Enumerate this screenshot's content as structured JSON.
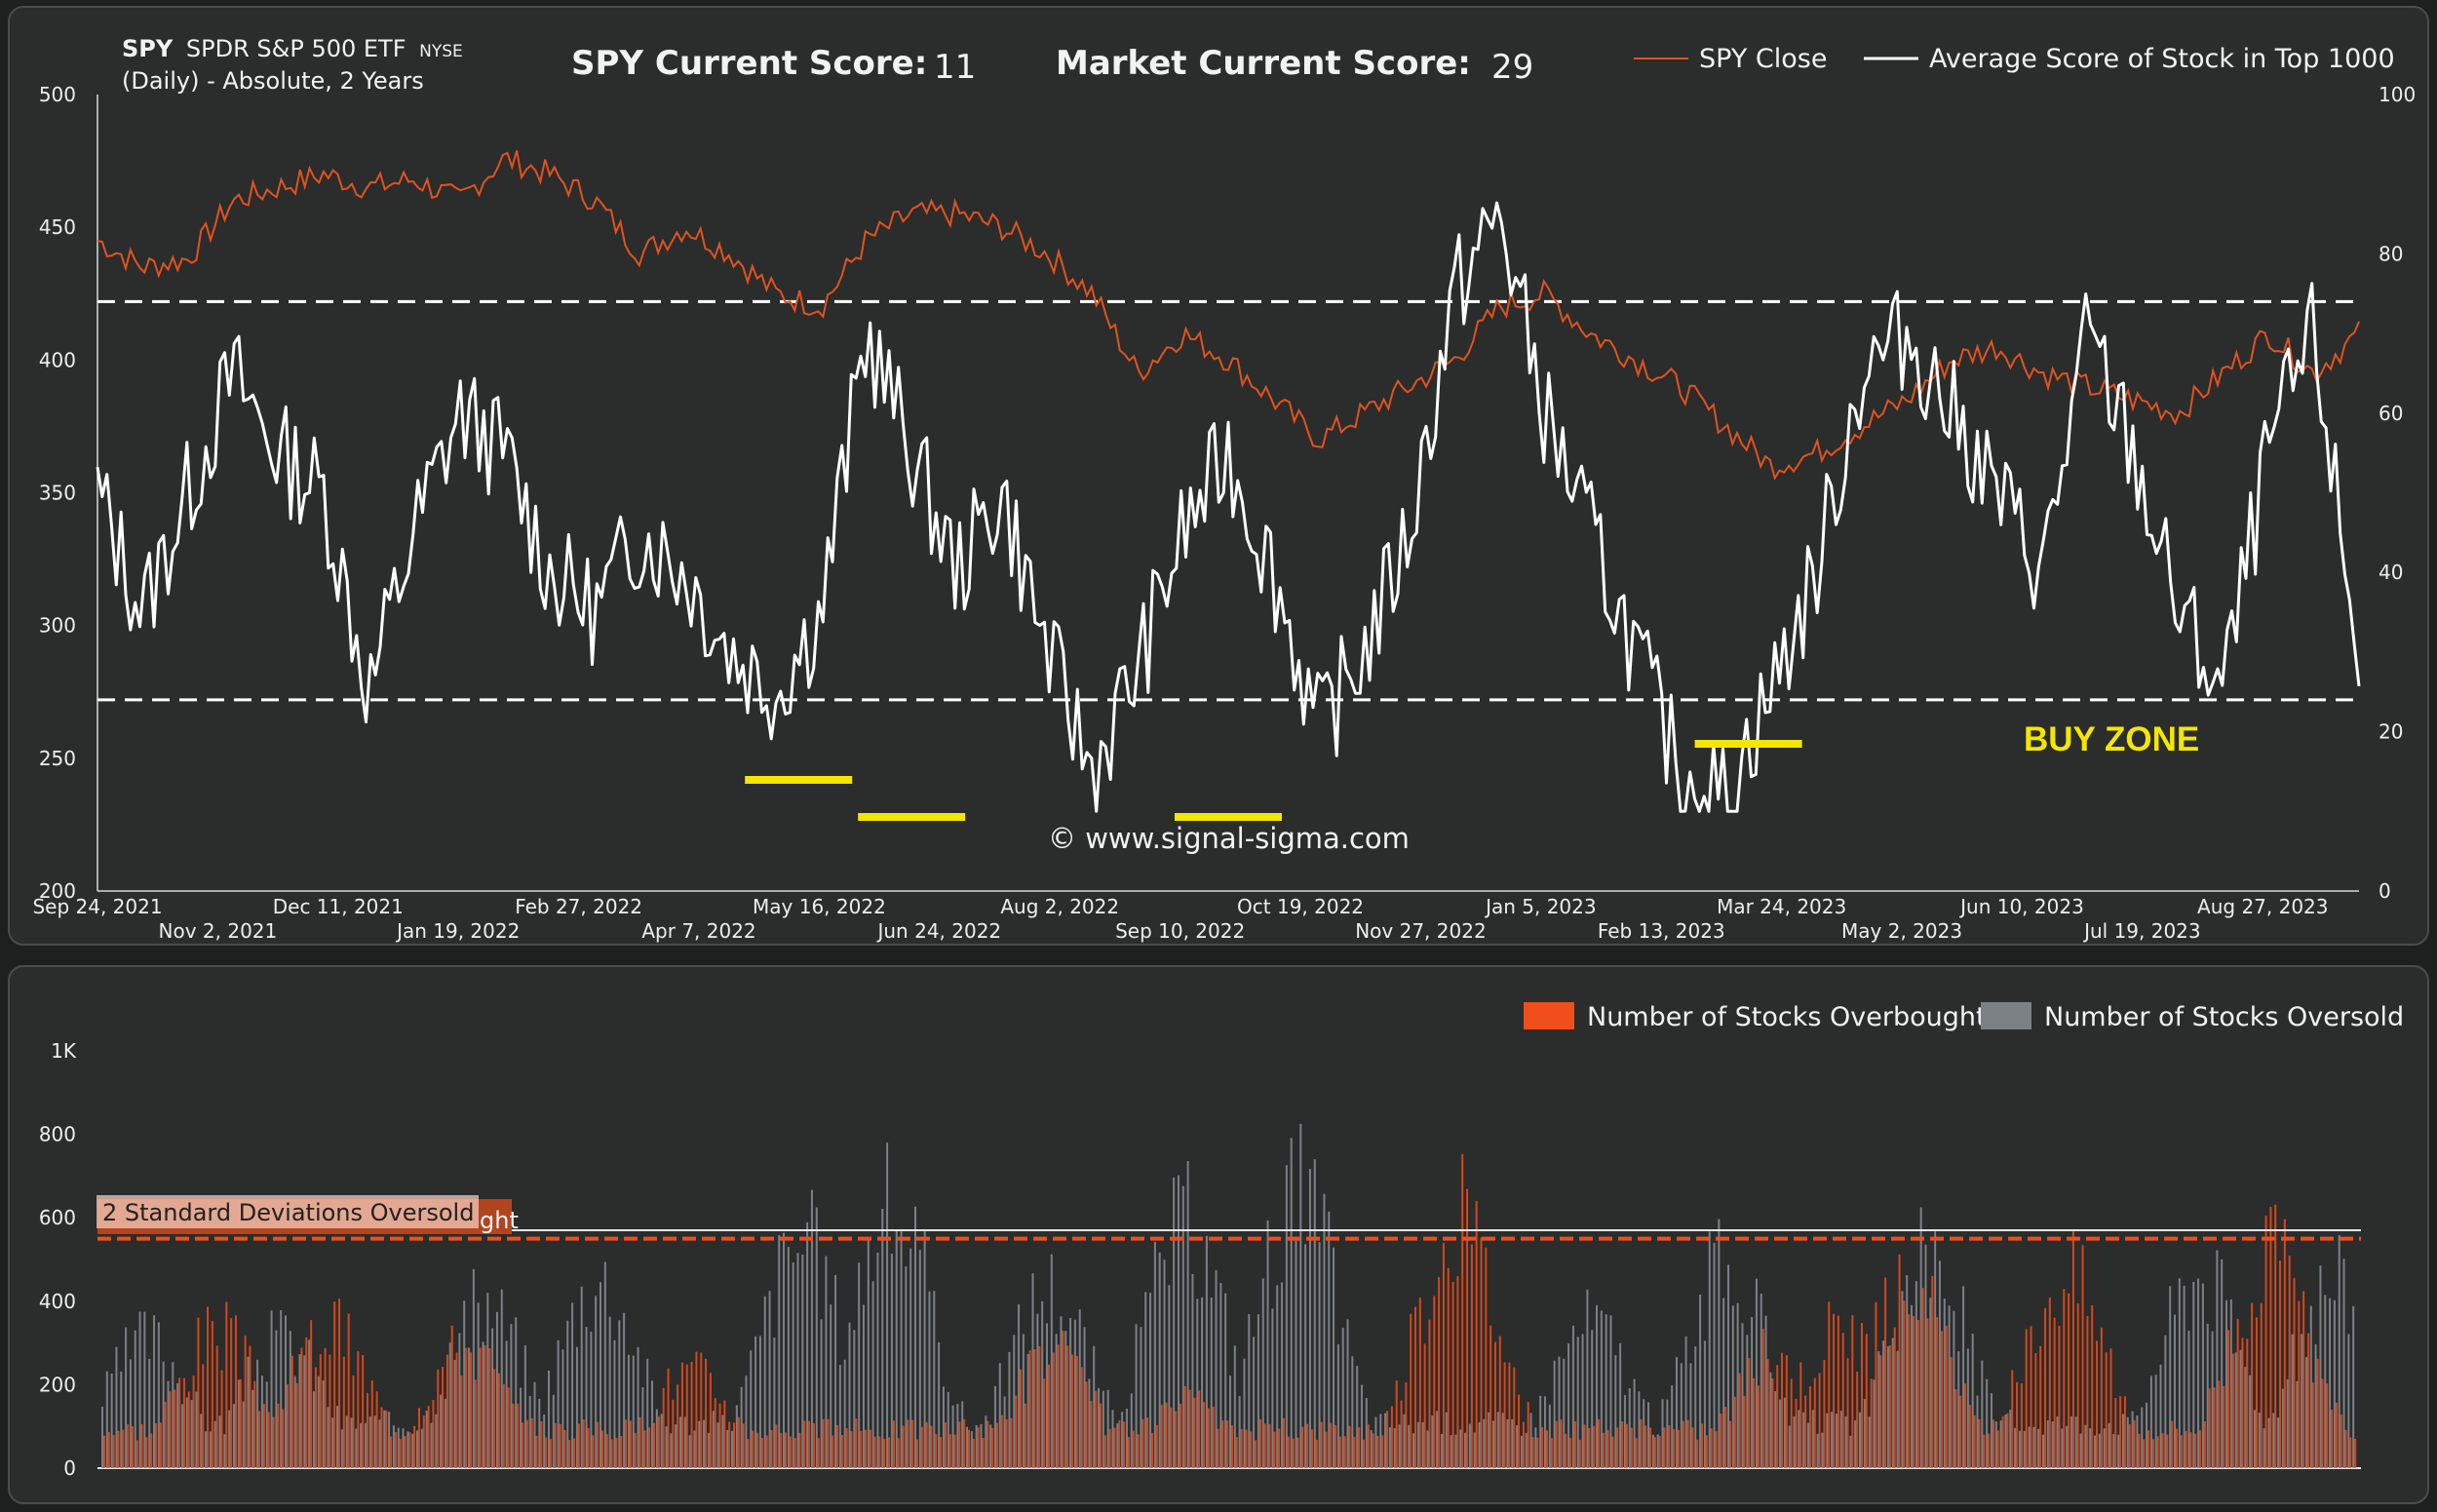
{
  "header": {
    "ticker": "SPY",
    "name": "SPDR S&P 500 ETF",
    "exchange": "NYSE",
    "subtitle": "(Daily) - Absolute, 2 Years",
    "spy_score_label": "SPY Current Score:",
    "spy_score_value": "11",
    "market_score_label": "Market Current Score:",
    "market_score_value": "29"
  },
  "legend_top": {
    "spy_close": "SPY Close",
    "avg_score": "Average Score of Stock in Top 1000"
  },
  "annotations": {
    "buy_zone": "BUY ZONE",
    "watermark": "© www.signal-sigma.com"
  },
  "legend_bottom": {
    "overbought": "Number of Stocks Overbought",
    "oversold": "Number of Stocks Oversold"
  },
  "bands": {
    "oversold_label": "2 Standard Deviations Oversold",
    "overbought_label_fragment": "ght"
  },
  "colors": {
    "spy_line": "#e0531f",
    "score_line": "#ffffff",
    "buy_mark": "#f5e600",
    "overbought": "#f04e1b",
    "oversold": "#7c8186",
    "background": "#2b2c2c"
  },
  "chart_data": [
    {
      "type": "line",
      "x_ticks_row1": [
        "Sep 24, 2021",
        "Dec 11, 2021",
        "Feb 27, 2022",
        "May 16, 2022",
        "Aug 2, 2022",
        "Oct 19, 2022",
        "Jan 5, 2023",
        "Mar 24, 2023",
        "Jun 10, 2023",
        "Aug 27, 2023"
      ],
      "x_ticks_row2": [
        "Nov 2, 2021",
        "Jan 19, 2022",
        "Apr 7, 2022",
        "Jun 24, 2022",
        "Sep 10, 2022",
        "Nov 27, 2022",
        "Feb 13, 2023",
        "May 2, 2023",
        "Jul 19, 2023"
      ],
      "y_left_ticks": [
        "200",
        "250",
        "300",
        "350",
        "400",
        "450",
        "500"
      ],
      "y_left_range": [
        200,
        500
      ],
      "y_right_ticks": [
        "0",
        "20",
        "40",
        "60",
        "80",
        "100"
      ],
      "y_right_range": [
        0,
        100
      ],
      "thresholds_right_axis": [
        74,
        24
      ],
      "series": [
        {
          "name": "SPY Close",
          "axis": "left",
          "points": [
            [
              0,
              445
            ],
            [
              0.02,
              435
            ],
            [
              0.04,
              438
            ],
            [
              0.06,
              460
            ],
            [
              0.08,
              465
            ],
            [
              0.1,
              470
            ],
            [
              0.12,
              465
            ],
            [
              0.14,
              468
            ],
            [
              0.16,
              460
            ],
            [
              0.18,
              476
            ],
            [
              0.2,
              470
            ],
            [
              0.22,
              460
            ],
            [
              0.24,
              440
            ],
            [
              0.26,
              450
            ],
            [
              0.28,
              440
            ],
            [
              0.3,
              425
            ],
            [
              0.32,
              420
            ],
            [
              0.34,
              445
            ],
            [
              0.36,
              455
            ],
            [
              0.38,
              455
            ],
            [
              0.4,
              450
            ],
            [
              0.42,
              440
            ],
            [
              0.44,
              425
            ],
            [
              0.46,
              395
            ],
            [
              0.48,
              410
            ],
            [
              0.5,
              400
            ],
            [
              0.52,
              385
            ],
            [
              0.54,
              370
            ],
            [
              0.56,
              380
            ],
            [
              0.58,
              390
            ],
            [
              0.6,
              400
            ],
            [
              0.62,
              420
            ],
            [
              0.64,
              425
            ],
            [
              0.66,
              410
            ],
            [
              0.68,
              400
            ],
            [
              0.7,
              390
            ],
            [
              0.72,
              375
            ],
            [
              0.74,
              360
            ],
            [
              0.76,
              365
            ],
            [
              0.78,
              375
            ],
            [
              0.8,
              385
            ],
            [
              0.82,
              400
            ],
            [
              0.84,
              405
            ],
            [
              0.86,
              395
            ],
            [
              0.88,
              390
            ],
            [
              0.9,
              385
            ],
            [
              0.92,
              380
            ],
            [
              0.94,
              395
            ],
            [
              0.96,
              410
            ],
            [
              0.98,
              395
            ],
            [
              1,
              410
            ]
          ]
        },
        {
          "name": "Average Score of Stock in Top 1000",
          "axis": "right",
          "points": [
            [
              0,
              50
            ],
            [
              0.02,
              35
            ],
            [
              0.04,
              50
            ],
            [
              0.06,
              65
            ],
            [
              0.08,
              55
            ],
            [
              0.1,
              50
            ],
            [
              0.12,
              25
            ],
            [
              0.14,
              45
            ],
            [
              0.16,
              60
            ],
            [
              0.18,
              55
            ],
            [
              0.2,
              40
            ],
            [
              0.22,
              35
            ],
            [
              0.24,
              45
            ],
            [
              0.26,
              40
            ],
            [
              0.28,
              30
            ],
            [
              0.3,
              25
            ],
            [
              0.32,
              35
            ],
            [
              0.34,
              70
            ],
            [
              0.36,
              55
            ],
            [
              0.38,
              40
            ],
            [
              0.4,
              50
            ],
            [
              0.42,
              30
            ],
            [
              0.44,
              15
            ],
            [
              0.46,
              28
            ],
            [
              0.48,
              45
            ],
            [
              0.5,
              55
            ],
            [
              0.52,
              40
            ],
            [
              0.54,
              20
            ],
            [
              0.56,
              30
            ],
            [
              0.58,
              45
            ],
            [
              0.6,
              75
            ],
            [
              0.62,
              85
            ],
            [
              0.64,
              60
            ],
            [
              0.66,
              45
            ],
            [
              0.68,
              30
            ],
            [
              0.7,
              15
            ],
            [
              0.72,
              12
            ],
            [
              0.74,
              25
            ],
            [
              0.76,
              40
            ],
            [
              0.78,
              65
            ],
            [
              0.8,
              70
            ],
            [
              0.82,
              60
            ],
            [
              0.84,
              50
            ],
            [
              0.86,
              40
            ],
            [
              0.88,
              70
            ],
            [
              0.9,
              55
            ],
            [
              0.92,
              35
            ],
            [
              0.94,
              25
            ],
            [
              0.96,
              55
            ],
            [
              0.98,
              70
            ],
            [
              1,
              28
            ]
          ]
        }
      ],
      "buy_markers_x": [
        0.31,
        0.36,
        0.5,
        0.73
      ]
    },
    {
      "type": "bar",
      "y_ticks": [
        "0",
        "200",
        "400",
        "600",
        "800",
        "1K"
      ],
      "y_range": [
        0,
        1000
      ],
      "reference_lines": [
        570,
        550
      ],
      "series": [
        {
          "name": "Number of Stocks Overbought",
          "peaks": [
            [
              0.05,
              420
            ],
            [
              0.1,
              430
            ],
            [
              0.16,
              380
            ],
            [
              0.26,
              300
            ],
            [
              0.42,
              350
            ],
            [
              0.48,
              200
            ],
            [
              0.6,
              760
            ],
            [
              0.74,
              350
            ],
            [
              0.77,
              440
            ],
            [
              0.8,
              560
            ],
            [
              0.87,
              600
            ],
            [
              0.96,
              650
            ]
          ]
        },
        {
          "name": "Number of Stocks Oversold",
          "peaks": [
            [
              0.02,
              400
            ],
            [
              0.08,
              400
            ],
            [
              0.17,
              500
            ],
            [
              0.22,
              580
            ],
            [
              0.31,
              700
            ],
            [
              0.35,
              800
            ],
            [
              0.42,
              560
            ],
            [
              0.48,
              750
            ],
            [
              0.53,
              850
            ],
            [
              0.66,
              450
            ],
            [
              0.72,
              620
            ],
            [
              0.81,
              640
            ],
            [
              0.93,
              600
            ],
            [
              0.99,
              580
            ]
          ]
        }
      ]
    }
  ]
}
